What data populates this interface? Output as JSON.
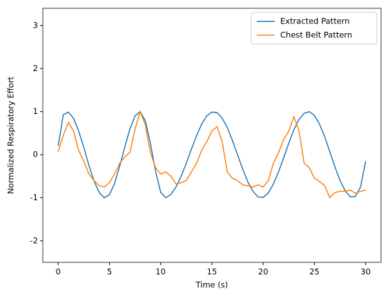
{
  "chart_data": {
    "type": "line",
    "xlabel": "Time (s)",
    "ylabel": "Normalized Respiratory Effort",
    "x": [
      0,
      0.5,
      1,
      1.5,
      2,
      2.5,
      3,
      3.5,
      4,
      4.5,
      5,
      5.5,
      6,
      6.5,
      7,
      7.5,
      8,
      8.5,
      9,
      9.5,
      10,
      10.5,
      11,
      11.5,
      12,
      12.5,
      13,
      13.5,
      14,
      14.5,
      15,
      15.5,
      16,
      16.5,
      17,
      17.5,
      18,
      18.5,
      19,
      19.5,
      20,
      20.5,
      21,
      21.5,
      22,
      22.5,
      23,
      23.5,
      24,
      24.5,
      25,
      25.5,
      26,
      26.5,
      27,
      27.5,
      28,
      28.5,
      29,
      29.5,
      30
    ],
    "series": [
      {
        "name": "Extracted Pattern",
        "color": "#1f77b4",
        "values": [
          0.2,
          0.93,
          0.99,
          0.84,
          0.55,
          0.17,
          -0.25,
          -0.61,
          -0.88,
          -1.0,
          -0.93,
          -0.67,
          -0.27,
          0.18,
          0.6,
          0.9,
          1.0,
          0.79,
          0.26,
          -0.38,
          -0.87,
          -1.0,
          -0.92,
          -0.75,
          -0.5,
          -0.2,
          0.13,
          0.44,
          0.71,
          0.9,
          0.99,
          0.98,
          0.85,
          0.63,
          0.33,
          0,
          -0.33,
          -0.63,
          -0.85,
          -0.98,
          -0.99,
          -0.89,
          -0.68,
          -0.4,
          -0.07,
          0.27,
          0.58,
          0.82,
          0.96,
          1.0,
          0.91,
          0.71,
          0.42,
          0.07,
          -0.28,
          -0.6,
          -0.84,
          -0.98,
          -0.97,
          -0.75,
          -0.15
        ]
      },
      {
        "name": "Chest Belt Pattern",
        "color": "#ff7f0e",
        "values": [
          0.07,
          0.45,
          0.75,
          0.55,
          0.1,
          -0.15,
          -0.45,
          -0.6,
          -0.72,
          -0.75,
          -0.65,
          -0.45,
          -0.2,
          -0.05,
          0.05,
          0.6,
          1.0,
          0.7,
          0.05,
          -0.3,
          -0.45,
          -0.4,
          -0.5,
          -0.68,
          -0.65,
          -0.6,
          -0.4,
          -0.2,
          0.1,
          0.3,
          0.55,
          0.65,
          0.3,
          -0.4,
          -0.55,
          -0.6,
          -0.7,
          -0.72,
          -0.75,
          -0.7,
          -0.75,
          -0.6,
          -0.2,
          0.05,
          0.35,
          0.55,
          0.88,
          0.55,
          -0.2,
          -0.3,
          -0.55,
          -0.62,
          -0.72,
          -1.0,
          -0.88,
          -0.85,
          -0.85,
          -0.82,
          -0.9,
          -0.85,
          -0.82
        ]
      }
    ],
    "xlim": [
      -1.5,
      31.5
    ],
    "xticks": [
      0,
      5,
      10,
      15,
      20,
      25,
      30
    ],
    "ylim": [
      -2.5,
      3.4
    ],
    "yticks": [
      -2,
      -1,
      0,
      1,
      2,
      3
    ],
    "legend": "upper right"
  }
}
